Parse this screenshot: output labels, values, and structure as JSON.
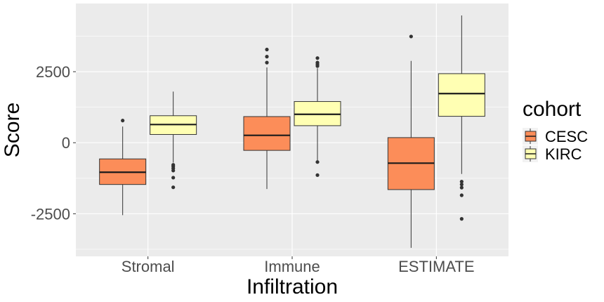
{
  "chart_data": {
    "type": "box",
    "xlabel": "Infiltration",
    "ylabel": "Score",
    "categories": [
      "Stromal",
      "Immune",
      "ESTIMATE"
    ],
    "ylim": [
      -4000,
      4900
    ],
    "yticks": [
      -2500,
      0,
      2500
    ],
    "ytick_labels": [
      "-2500",
      "0",
      "2500"
    ],
    "grid": true,
    "legend": {
      "title": "cohort",
      "position": "right",
      "entries": [
        "CESC",
        "KIRC"
      ]
    },
    "series": [
      {
        "name": "CESC",
        "color": "#FC8D59",
        "boxes": [
          {
            "category": "Stromal",
            "min": -2550,
            "q1": -1470,
            "median": -1040,
            "q3": -570,
            "max": 570,
            "outliers": [
              780
            ]
          },
          {
            "category": "Immune",
            "min": -1630,
            "q1": -270,
            "median": 260,
            "q3": 920,
            "max": 2650,
            "outliers": [
              2820,
              3030,
              3280
            ]
          },
          {
            "category": "ESTIMATE",
            "min": -3700,
            "q1": -1650,
            "median": -720,
            "q3": 180,
            "max": 2880,
            "outliers": [
              3740
            ]
          }
        ]
      },
      {
        "name": "KIRC",
        "color": "#FFFFB3",
        "boxes": [
          {
            "category": "Stromal",
            "min": -700,
            "q1": 290,
            "median": 640,
            "q3": 950,
            "max": 1800,
            "outliers": [
              -780,
              -830,
              -900,
              -980,
              -1230,
              -1570
            ]
          },
          {
            "category": "Immune",
            "min": -650,
            "q1": 600,
            "median": 1000,
            "q3": 1450,
            "max": 2620,
            "outliers": [
              -680,
              -1140,
              2700,
              2760,
              2820,
              2980
            ]
          },
          {
            "category": "ESTIMATE",
            "min": -1100,
            "q1": 930,
            "median": 1730,
            "q3": 2430,
            "max": 4480,
            "outliers": [
              -1370,
              -1470,
              -1580,
              -1850,
              -2680
            ]
          }
        ]
      }
    ]
  }
}
